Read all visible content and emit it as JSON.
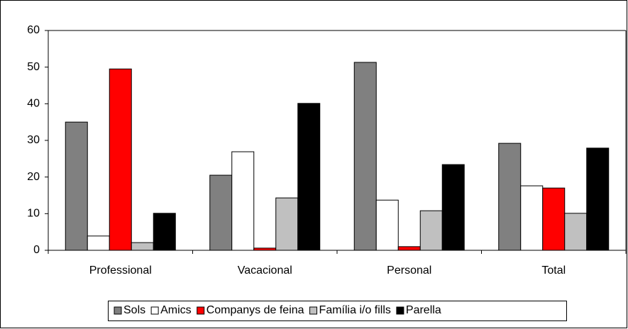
{
  "chart_data": {
    "type": "bar",
    "categories": [
      "Professional",
      "Vacacional",
      "Personal",
      "Total"
    ],
    "series": [
      {
        "name": "Sols",
        "color": "#808080",
        "values": [
          35.0,
          20.5,
          51.3,
          29.2
        ]
      },
      {
        "name": "Amics",
        "color": "#ffffff",
        "values": [
          3.9,
          26.9,
          13.7,
          17.6
        ]
      },
      {
        "name": "Companys de feina",
        "color": "#ff0000",
        "values": [
          49.5,
          0.6,
          1.0,
          17.0
        ]
      },
      {
        "name": "Família i/o fills",
        "color": "#c0c0c0",
        "values": [
          2.1,
          14.3,
          10.8,
          10.1
        ]
      },
      {
        "name": "Parella",
        "color": "#000000",
        "values": [
          10.1,
          40.1,
          23.4,
          27.9
        ]
      }
    ],
    "ylim": [
      0,
      60
    ],
    "yticks": [
      0,
      10,
      20,
      30,
      40,
      50,
      60
    ],
    "grid": false,
    "legend": "bottom"
  }
}
